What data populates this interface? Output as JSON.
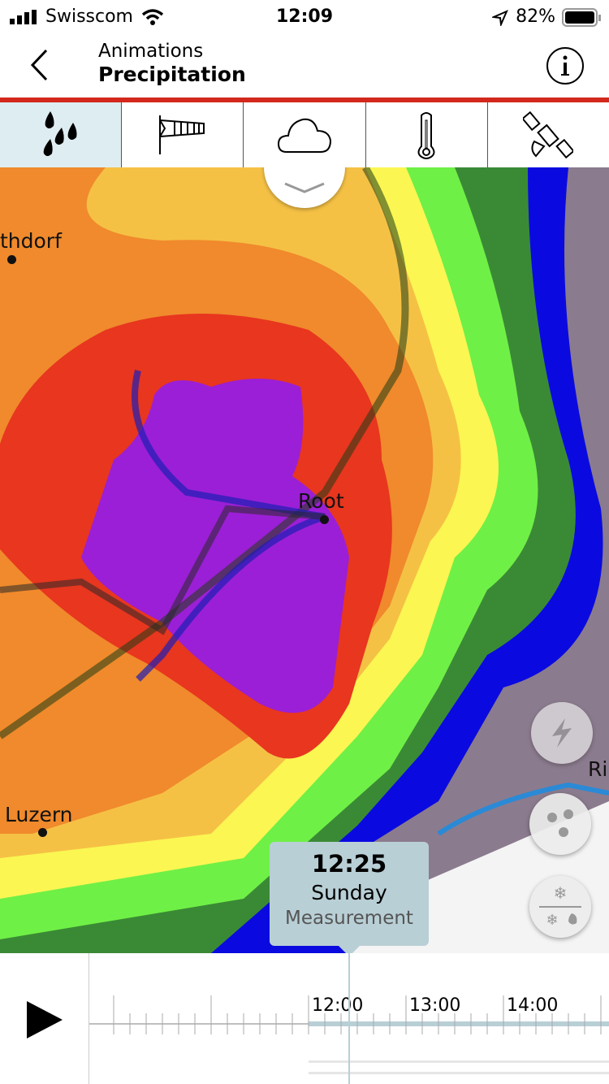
{
  "status": {
    "carrier": "Swisscom",
    "time": "12:09",
    "battery": "82%"
  },
  "header": {
    "section": "Animations",
    "title": "Precipitation"
  },
  "tabs": [
    {
      "name": "precipitation",
      "icon": "raindrops-icon",
      "active": true
    },
    {
      "name": "wind",
      "icon": "windsock-icon"
    },
    {
      "name": "clouds",
      "icon": "cloud-icon"
    },
    {
      "name": "temperature",
      "icon": "thermometer-icon"
    },
    {
      "name": "satellite",
      "icon": "satellite-icon"
    }
  ],
  "map": {
    "places": [
      {
        "name": "thdorf"
      },
      {
        "name": "Root"
      },
      {
        "name": "Luzern"
      },
      {
        "name": "Ri"
      }
    ],
    "colors": {
      "purple": "#9b1fd6",
      "red": "#e8361f",
      "orange": "#f08a2c",
      "lightorange": "#f5c145",
      "yellow": "#fbf652",
      "lightgreen": "#6ff046",
      "green": "#3a8a35",
      "blue": "#0a0ae0",
      "mauve": "#8b7b8e"
    }
  },
  "controls": {
    "lightning": "lightning-icon",
    "stations": "dots-icon",
    "snow": "snow-rain-icon"
  },
  "tooltip": {
    "time": "12:25",
    "day": "Sunday",
    "type": "Measurement"
  },
  "timeline": {
    "labels": [
      "12:00",
      "13:00",
      "14:00"
    ],
    "accent": "#b9cfd6"
  }
}
